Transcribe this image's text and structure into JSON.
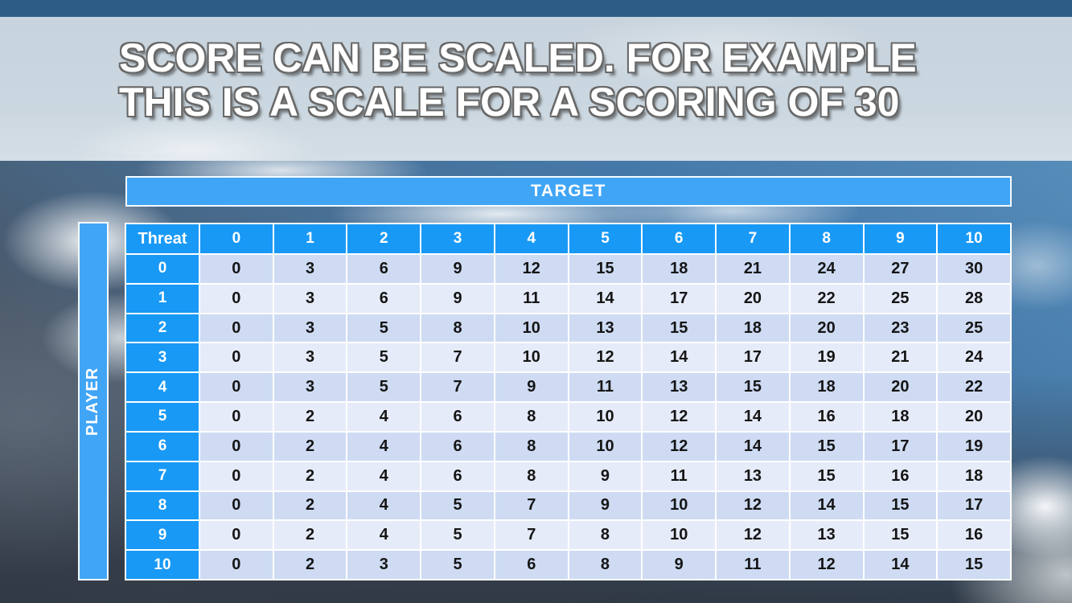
{
  "slide": {
    "title": {
      "line1": "SCORE CAN BE SCALED. FOR EXAMPLE",
      "line2": "THIS IS A SCALE FOR A SCORING OF 30"
    }
  },
  "table": {
    "target_label": "TARGET",
    "player_label": "PLAYER",
    "corner_label": "Threat",
    "column_headers": [
      "0",
      "1",
      "2",
      "3",
      "4",
      "5",
      "6",
      "7",
      "8",
      "9",
      "10"
    ],
    "row_headers": [
      "0",
      "1",
      "2",
      "3",
      "4",
      "5",
      "6",
      "7",
      "8",
      "9",
      "10"
    ],
    "rows": [
      [
        0,
        3,
        6,
        9,
        12,
        15,
        18,
        21,
        24,
        27,
        30
      ],
      [
        0,
        3,
        6,
        9,
        11,
        14,
        17,
        20,
        22,
        25,
        28
      ],
      [
        0,
        3,
        5,
        8,
        10,
        13,
        15,
        18,
        20,
        23,
        25
      ],
      [
        0,
        3,
        5,
        7,
        10,
        12,
        14,
        17,
        19,
        21,
        24
      ],
      [
        0,
        3,
        5,
        7,
        9,
        11,
        13,
        15,
        18,
        20,
        22
      ],
      [
        0,
        2,
        4,
        6,
        8,
        10,
        12,
        14,
        16,
        18,
        20
      ],
      [
        0,
        2,
        4,
        6,
        8,
        10,
        12,
        14,
        15,
        17,
        19
      ],
      [
        0,
        2,
        4,
        6,
        8,
        9,
        11,
        13,
        15,
        16,
        18
      ],
      [
        0,
        2,
        4,
        5,
        7,
        9,
        10,
        12,
        14,
        15,
        17
      ],
      [
        0,
        2,
        4,
        5,
        7,
        8,
        10,
        12,
        13,
        15,
        16
      ],
      [
        0,
        2,
        3,
        5,
        6,
        8,
        9,
        11,
        12,
        14,
        15
      ]
    ]
  },
  "colors": {
    "header_blue": "#1899f6",
    "banner_blue": "#41a5f6",
    "row_dark": "#cedbf3",
    "row_light": "#e6ebf9",
    "top_bar": "#2c5d86",
    "title_fill": "#ffffff",
    "title_outline": "#686868"
  }
}
